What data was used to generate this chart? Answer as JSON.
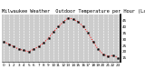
{
  "title": "Milwaukee Weather  Outdoor Temperature per Hour (Last 24 Hours)",
  "hours": [
    0,
    1,
    2,
    3,
    4,
    5,
    6,
    7,
    8,
    9,
    10,
    11,
    12,
    13,
    14,
    15,
    16,
    17,
    18,
    19,
    20,
    21,
    22,
    23
  ],
  "temps": [
    28,
    26,
    24,
    22,
    21,
    20,
    22,
    24,
    27,
    31,
    36,
    40,
    44,
    47,
    46,
    44,
    40,
    35,
    28,
    22,
    18,
    16,
    17,
    15
  ],
  "line_color": "#ff0000",
  "marker_color": "#000000",
  "bg_color": "#ffffff",
  "plot_bg_color": "#cccccc",
  "grid_color": "#ffffff",
  "title_color": "#000000",
  "ylim": [
    12,
    50
  ],
  "ytick_vals": [
    15,
    20,
    25,
    30,
    35,
    40,
    45
  ],
  "ytick_labels": [
    "15",
    "20",
    "25",
    "30",
    "35",
    "40",
    "45"
  ],
  "title_fontsize": 3.8,
  "tick_fontsize": 3.0
}
